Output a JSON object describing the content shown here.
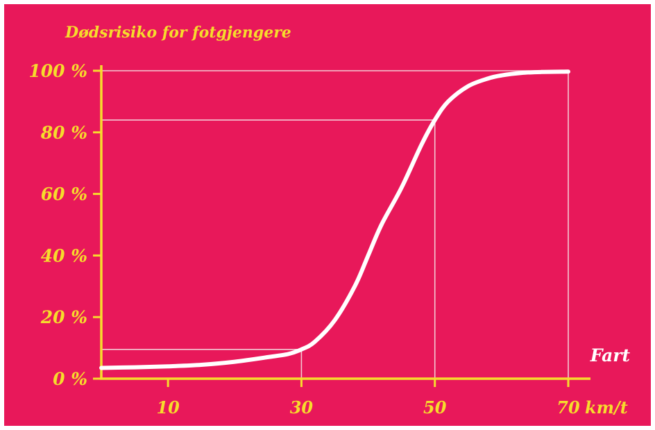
{
  "chart_data": {
    "type": "line",
    "title": "Dødsrisiko for fotgjengere",
    "xlabel": "Fart",
    "x_unit": "km/t",
    "ylabel": "",
    "xlim": [
      0,
      70
    ],
    "ylim": [
      0,
      100
    ],
    "x_ticks": [
      "10",
      "30",
      "50",
      "70"
    ],
    "y_ticks": [
      "0 %",
      "20 %",
      "40 %",
      "60 %",
      "80 %",
      "100 %"
    ],
    "series": [
      {
        "x": [
          0,
          5,
          10,
          15,
          20,
          25,
          28,
          30,
          32,
          35,
          38,
          40,
          42,
          45,
          48,
          50,
          52,
          55,
          58,
          60,
          63,
          66,
          70
        ],
        "y": [
          3.5,
          3.7,
          4,
          4.5,
          5.5,
          7,
          8,
          9.5,
          12,
          19,
          30,
          40,
          50,
          62,
          76,
          84,
          90,
          95,
          97.5,
          98.5,
          99.3,
          99.6,
          99.7
        ]
      }
    ],
    "reference_lines": [
      {
        "x": 30,
        "y": 9.5
      },
      {
        "x": 50,
        "y": 84
      },
      {
        "x": 70,
        "y": 100
      }
    ],
    "grid": false
  },
  "colors": {
    "background": "#e8185a",
    "axis": "#f6dc2c",
    "curve": "#ffffff",
    "reference": "#f3c9d3"
  }
}
